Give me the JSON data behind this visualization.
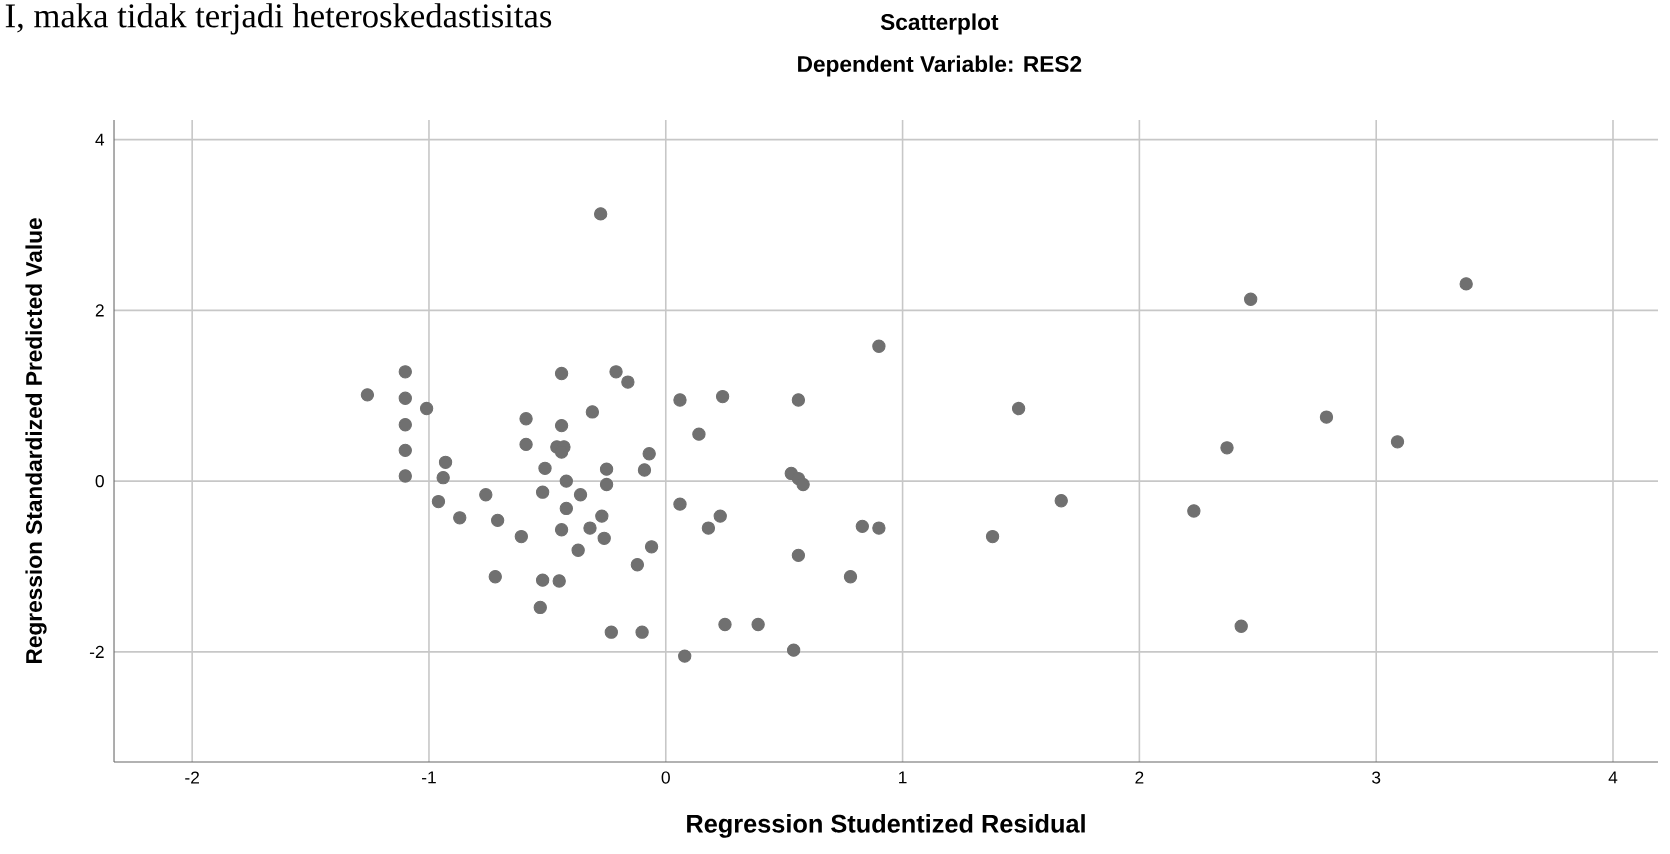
{
  "chart_data": {
    "type": "scatter",
    "title": "Scatterplot",
    "subtitle": "Dependent Variable: RES2",
    "xlabel": "Regression Studentized Residual",
    "ylabel": "Regression Standardized Predicted Value",
    "annotations": [
      "I, maka tidak terjadi heteroskedastisitas"
    ],
    "xlim": [
      -2.33,
      4.19
    ],
    "ylim": [
      -3.29,
      4.23
    ],
    "xticks": [
      -2,
      -1,
      0,
      1,
      2,
      3,
      4
    ],
    "yticks": [
      -2,
      0,
      2,
      4
    ],
    "grid": true,
    "marker": "circle",
    "series": [
      {
        "color": "#707070",
        "x": [
          -0.275,
          0.9,
          -1.1,
          -0.44,
          -0.21,
          -0.16,
          -1.26,
          -1.1,
          0.06,
          0.24,
          0.56,
          -1.01,
          -0.59,
          -0.31,
          -1.1,
          -0.44,
          0.14,
          -1.1,
          -0.59,
          -0.46,
          -0.43,
          -0.44,
          -0.07,
          -0.93,
          -0.51,
          -0.25,
          -0.09,
          -1.1,
          -0.94,
          0.53,
          0.56,
          0.58,
          -0.42,
          -0.25,
          -0.76,
          -0.52,
          -0.36,
          -0.96,
          -0.42,
          0.06,
          -0.87,
          -0.71,
          -0.27,
          0.23,
          -0.44,
          -0.32,
          0.18,
          -0.61,
          -0.26,
          0.83,
          0.9,
          -0.37,
          -0.06,
          0.56,
          -0.12,
          -0.72,
          -0.52,
          -0.45,
          0.78,
          -0.53,
          0.25,
          0.39,
          -0.23,
          -0.1,
          0.54,
          0.08,
          1.49,
          1.67,
          1.38,
          2.47,
          3.38,
          2.79,
          2.37,
          3.09,
          2.23,
          2.43
        ],
        "values": [
          3.13,
          1.58,
          1.28,
          1.26,
          1.28,
          1.16,
          1.01,
          0.97,
          0.95,
          0.99,
          0.95,
          0.85,
          0.73,
          0.81,
          0.66,
          0.65,
          0.55,
          0.36,
          0.43,
          0.4,
          0.4,
          0.34,
          0.32,
          0.22,
          0.15,
          0.14,
          0.13,
          0.06,
          0.04,
          0.09,
          0.03,
          -0.04,
          0.0,
          -0.04,
          -0.16,
          -0.13,
          -0.16,
          -0.24,
          -0.32,
          -0.27,
          -0.43,
          -0.46,
          -0.41,
          -0.41,
          -0.57,
          -0.55,
          -0.55,
          -0.65,
          -0.67,
          -0.53,
          -0.55,
          -0.81,
          -0.77,
          -0.87,
          -0.98,
          -1.12,
          -1.16,
          -1.17,
          -1.12,
          -1.48,
          -1.68,
          -1.68,
          -1.77,
          -1.77,
          -1.98,
          -2.05,
          0.85,
          -0.23,
          -0.65,
          2.13,
          2.31,
          0.75,
          0.39,
          0.46,
          -0.35,
          -1.7
        ]
      }
    ]
  }
}
